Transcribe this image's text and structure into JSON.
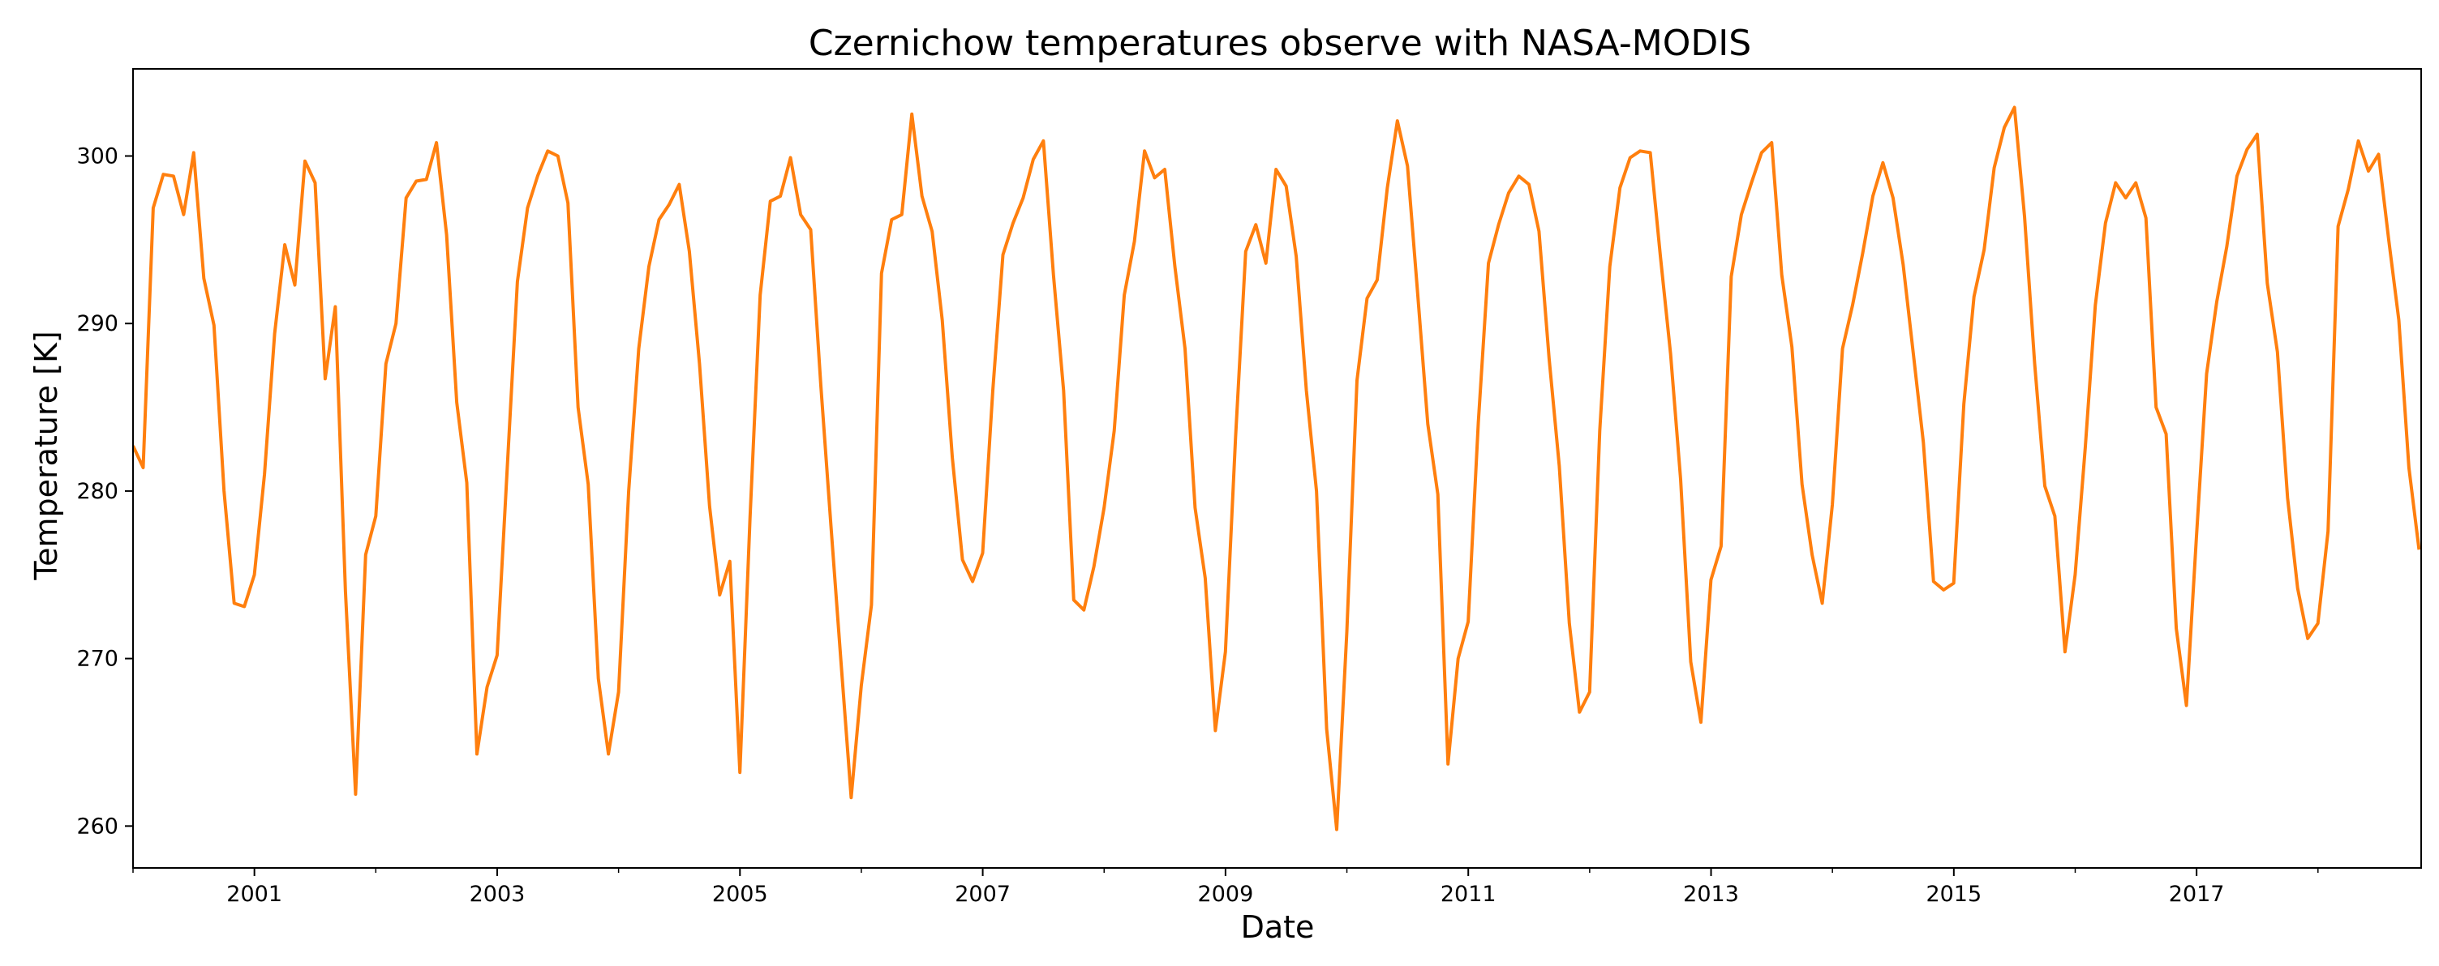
{
  "colors": {
    "line": "#ff7f0e",
    "axis": "#000000",
    "background": "#ffffff"
  },
  "chart_data": {
    "type": "line",
    "title": "Czernichow temperatures observe with NASA-MODIS",
    "xlabel": "Date",
    "ylabel": "Temperature [K]",
    "xlim": [
      2000.0,
      2018.85
    ],
    "ylim": [
      257.5,
      305.2
    ],
    "grid": false,
    "x_ticks": [
      2001,
      2003,
      2005,
      2007,
      2009,
      2011,
      2013,
      2015,
      2017
    ],
    "x_tick_labels": [
      "2001",
      "2003",
      "2005",
      "2007",
      "2009",
      "2011",
      "2013",
      "2015",
      "2017"
    ],
    "y_ticks": [
      260,
      270,
      280,
      290,
      300
    ],
    "y_tick_labels": [
      "260",
      "270",
      "280",
      "290",
      "300"
    ],
    "series": [
      {
        "name": "Temperature",
        "start_year": 2000.0,
        "step_years": 0.08333,
        "values": [
          282.7,
          281.4,
          296.9,
          298.9,
          298.8,
          296.5,
          300.2,
          292.7,
          289.9,
          280.0,
          273.3,
          273.1,
          275.0,
          281.0,
          289.4,
          294.7,
          292.3,
          299.7,
          298.4,
          286.7,
          291.0,
          274.0,
          261.9,
          276.2,
          278.5,
          287.6,
          290.0,
          297.5,
          298.5,
          298.6,
          300.8,
          295.3,
          285.3,
          280.5,
          264.3,
          268.3,
          270.2,
          281.4,
          292.5,
          296.9,
          298.8,
          300.3,
          300.0,
          297.2,
          285.0,
          280.4,
          268.8,
          264.3,
          268.0,
          280.0,
          288.5,
          293.4,
          296.2,
          297.1,
          298.3,
          294.3,
          287.6,
          279.1,
          273.8,
          275.8,
          263.2,
          278.4,
          291.7,
          297.3,
          297.6,
          299.9,
          296.5,
          295.6,
          286.3,
          277.9,
          269.7,
          261.7,
          268.4,
          273.2,
          293.0,
          296.2,
          296.5,
          302.5,
          297.6,
          295.5,
          290.2,
          282.0,
          275.9,
          274.6,
          276.3,
          286.0,
          294.1,
          296.0,
          297.5,
          299.8,
          300.9,
          292.9,
          286.0,
          273.5,
          272.9,
          275.5,
          279.0,
          283.6,
          291.7,
          294.9,
          300.3,
          298.7,
          299.2,
          293.4,
          288.5,
          279.0,
          274.8,
          265.7,
          270.4,
          283.2,
          294.3,
          295.9,
          293.6,
          299.2,
          298.2,
          294.0,
          286.0,
          280.0,
          265.8,
          259.8,
          271.6,
          286.6,
          291.5,
          292.6,
          298.1,
          302.1,
          299.4,
          291.8,
          284.0,
          279.8,
          263.7,
          270.0,
          272.2,
          284.1,
          293.6,
          295.9,
          297.8,
          298.8,
          298.3,
          295.5,
          287.9,
          281.5,
          272.1,
          266.8,
          268.0,
          283.6,
          293.4,
          298.1,
          299.9,
          300.3,
          300.2,
          294.0,
          288.2,
          280.7,
          269.8,
          266.2,
          274.7,
          276.7,
          292.8,
          296.5,
          298.4,
          300.2,
          300.8,
          292.9,
          288.6,
          280.4,
          276.2,
          273.3,
          279.2,
          288.5,
          291.1,
          294.2,
          297.6,
          299.6,
          297.5,
          293.5,
          288.2,
          282.9,
          274.6,
          274.1,
          274.5,
          285.2,
          291.6,
          294.4,
          299.3,
          301.7,
          302.9,
          296.4,
          287.6,
          280.3,
          278.5,
          270.4,
          275.0,
          282.6,
          291.1,
          296.0,
          298.4,
          297.5,
          298.4,
          296.3,
          285.0,
          283.4,
          271.8,
          267.2,
          277.3,
          287.0,
          291.3,
          294.6,
          298.8,
          300.4,
          301.3,
          292.4,
          288.3,
          279.6,
          274.2,
          271.2,
          272.1,
          277.6,
          295.8,
          298.0,
          300.9,
          299.1,
          300.1,
          295.0,
          290.2,
          281.4,
          276.5
        ]
      }
    ]
  }
}
